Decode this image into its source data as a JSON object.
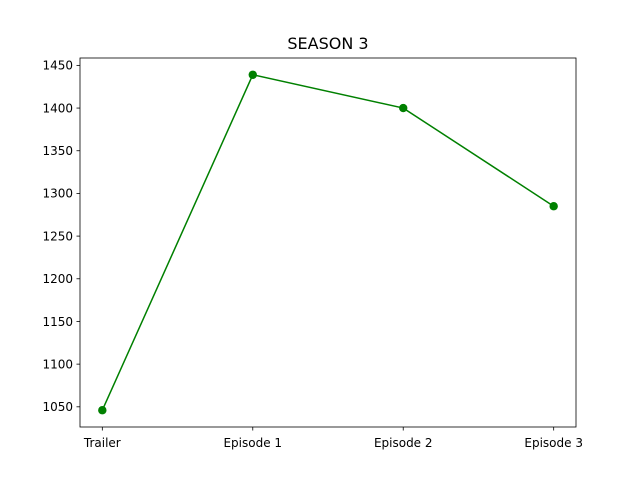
{
  "chart_data": {
    "type": "line",
    "title": "SEASON 3",
    "xlabel": "",
    "ylabel": "",
    "categories": [
      "Trailer",
      "Episode 1",
      "Episode 2",
      "Episode 3"
    ],
    "series": [
      {
        "values": [
          1046,
          1439,
          1400,
          1285
        ],
        "color": "#008000",
        "marker": "circle"
      }
    ],
    "ylim": [
      1026.35,
      1458.65
    ],
    "yticks": [
      1050,
      1100,
      1150,
      1200,
      1250,
      1300,
      1350,
      1400,
      1450
    ],
    "grid": false,
    "legend": "none"
  }
}
